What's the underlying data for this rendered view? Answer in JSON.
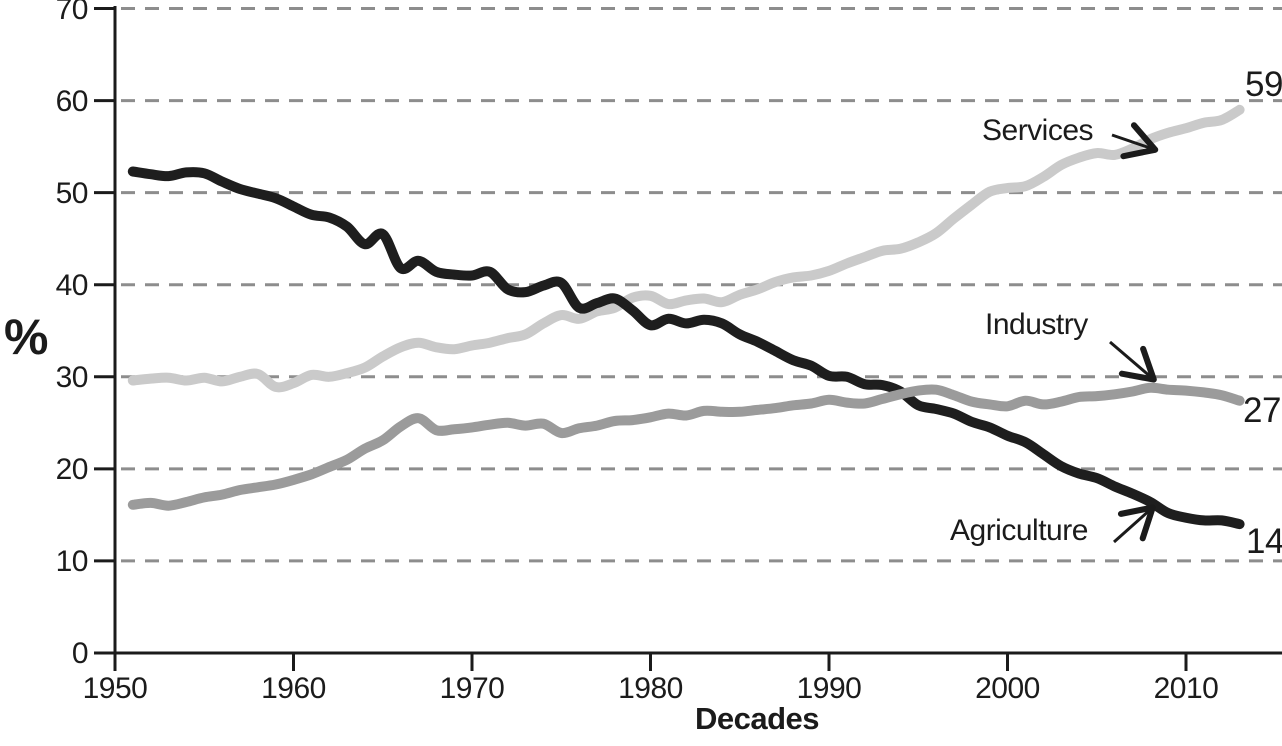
{
  "chart_data": {
    "type": "line",
    "title": "",
    "xlabel": "Decades",
    "ylabel": "%",
    "xlim": [
      1950,
      2013.5
    ],
    "ylim": [
      0,
      70
    ],
    "xticks": [
      1950,
      1960,
      1970,
      1980,
      1990,
      2000,
      2010
    ],
    "yticks": [
      0,
      10,
      20,
      30,
      40,
      50,
      60,
      70
    ],
    "grid": "horizontal-dashed",
    "legend_position": "inline-annotations-right",
    "x_years": [
      1951,
      1952,
      1953,
      1954,
      1955,
      1956,
      1957,
      1958,
      1959,
      1960,
      1961,
      1962,
      1963,
      1964,
      1965,
      1966,
      1967,
      1968,
      1969,
      1970,
      1971,
      1972,
      1973,
      1974,
      1975,
      1976,
      1977,
      1978,
      1979,
      1980,
      1981,
      1982,
      1983,
      1984,
      1985,
      1986,
      1987,
      1988,
      1989,
      1990,
      1991,
      1992,
      1993,
      1994,
      1995,
      1996,
      1997,
      1998,
      1999,
      2000,
      2001,
      2002,
      2003,
      2004,
      2005,
      2006,
      2007,
      2008,
      2009,
      2010,
      2011,
      2012,
      2013
    ],
    "series": [
      {
        "name": "Services",
        "color": "#cacaca",
        "end_label": "59",
        "values": [
          29.6,
          29.8,
          29.9,
          29.6,
          29.9,
          29.5,
          30.0,
          30.3,
          28.9,
          29.3,
          30.2,
          30.0,
          30.4,
          31.0,
          32.2,
          33.2,
          33.7,
          33.2,
          33.0,
          33.4,
          33.7,
          34.2,
          34.6,
          35.8,
          36.7,
          36.3,
          37.1,
          37.5,
          38.6,
          38.8,
          37.9,
          38.3,
          38.5,
          38.1,
          38.9,
          39.5,
          40.3,
          40.8,
          41.0,
          41.5,
          42.3,
          43.0,
          43.7,
          43.9,
          44.6,
          45.6,
          47.2,
          48.7,
          50.1,
          50.5,
          50.7,
          51.7,
          53.0,
          53.8,
          54.3,
          54.1,
          54.8,
          55.8,
          56.5,
          57.0,
          57.6,
          57.9,
          59.0
        ]
      },
      {
        "name": "Agriculture",
        "color": "#1e1e1e",
        "end_label": "14",
        "values": [
          52.3,
          52.0,
          51.8,
          52.2,
          52.1,
          51.2,
          50.4,
          49.9,
          49.4,
          48.5,
          47.6,
          47.3,
          46.3,
          44.4,
          45.5,
          41.8,
          42.6,
          41.4,
          41.1,
          41.0,
          41.4,
          39.5,
          39.2,
          39.9,
          40.2,
          37.5,
          38.0,
          38.5,
          37.2,
          35.6,
          36.3,
          35.8,
          36.2,
          35.8,
          34.6,
          33.8,
          32.8,
          31.8,
          31.2,
          30.1,
          30.0,
          29.2,
          29.1,
          28.4,
          26.9,
          26.5,
          26.0,
          25.1,
          24.5,
          23.6,
          22.9,
          21.6,
          20.3,
          19.5,
          19.0,
          18.1,
          17.3,
          16.4,
          15.2,
          14.7,
          14.4,
          14.4,
          14.0
        ]
      },
      {
        "name": "Industry",
        "color": "#9b9b9b",
        "end_label": "27",
        "values": [
          16.1,
          16.3,
          16.0,
          16.4,
          16.9,
          17.2,
          17.7,
          18.0,
          18.3,
          18.8,
          19.4,
          20.2,
          21.0,
          22.2,
          23.1,
          24.6,
          25.5,
          24.2,
          24.3,
          24.5,
          24.8,
          25.0,
          24.7,
          24.9,
          23.9,
          24.4,
          24.7,
          25.2,
          25.3,
          25.6,
          26.0,
          25.8,
          26.3,
          26.2,
          26.2,
          26.4,
          26.6,
          26.9,
          27.1,
          27.5,
          27.2,
          27.1,
          27.6,
          28.1,
          28.5,
          28.6,
          28.0,
          27.3,
          27.0,
          26.8,
          27.4,
          27.0,
          27.3,
          27.8,
          27.9,
          28.1,
          28.4,
          28.8,
          28.6,
          28.5,
          28.3,
          28.0,
          27.4
        ]
      }
    ],
    "axis_color": "#1b1b1b",
    "grid_color": "#8d8d8d"
  },
  "labels": {
    "ylabel": "%",
    "xlabel": "Decades",
    "services": "Services",
    "industry": "Industry",
    "agriculture": "Agriculture",
    "services_end": "59",
    "industry_end": "27",
    "agriculture_end": "14"
  }
}
